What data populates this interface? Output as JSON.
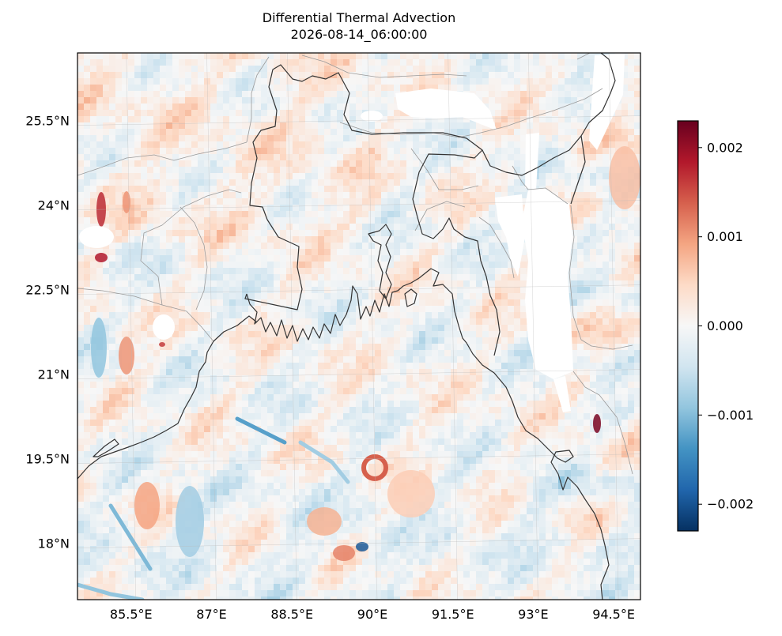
{
  "figure": {
    "title": "Differential Thermal Advection",
    "subtitle": "2026-08-14_06:00:00"
  },
  "map": {
    "region": "Bay of Bengal / Bangladesh",
    "extent": {
      "lon": [
        84.5,
        95.0
      ],
      "lat": [
        17.0,
        26.7
      ]
    },
    "lon_ticks": [
      {
        "value": 85.5,
        "label": "85.5°E"
      },
      {
        "value": 87.0,
        "label": "87°E"
      },
      {
        "value": 88.5,
        "label": "88.5°E"
      },
      {
        "value": 90.0,
        "label": "90°E"
      },
      {
        "value": 91.5,
        "label": "91.5°E"
      },
      {
        "value": 93.0,
        "label": "93°E"
      },
      {
        "value": 94.5,
        "label": "94.5°E"
      }
    ],
    "lat_ticks": [
      {
        "value": 25.5,
        "label": "25.5°N"
      },
      {
        "value": 24.0,
        "label": "24°N"
      },
      {
        "value": 22.5,
        "label": "22.5°N"
      },
      {
        "value": 21.0,
        "label": "21°N"
      },
      {
        "value": 19.5,
        "label": "19.5°N"
      },
      {
        "value": 18.0,
        "label": "18°N"
      }
    ],
    "gridlines": true,
    "colormap": "RdBu_r",
    "colors": {
      "negative": "#053061",
      "zero": "#f7f7f7",
      "positive": "#67001f",
      "coast": "#333333",
      "borders": "#9a9a9a"
    }
  },
  "colorbar": {
    "range": [
      -0.0023,
      0.0023
    ],
    "ticks": [
      {
        "value": 0.002,
        "label": "0.002"
      },
      {
        "value": 0.001,
        "label": "0.001"
      },
      {
        "value": 0.0,
        "label": "0.000"
      },
      {
        "value": -0.001,
        "label": "−0.001"
      },
      {
        "value": -0.002,
        "label": "−0.002"
      }
    ]
  }
}
